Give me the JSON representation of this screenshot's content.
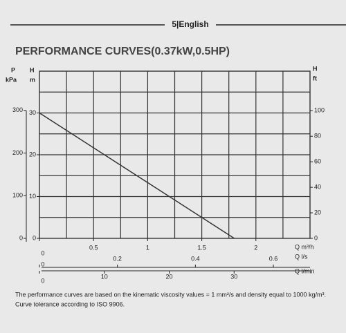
{
  "header": "5|English",
  "chart_data": {
    "type": "line",
    "title": "PERFORMANCE CURVES(0.37kW,0.5HP)",
    "x": [
      0,
      1.8
    ],
    "series": [
      {
        "color": "#333333",
        "values": [
          30,
          0
        ]
      }
    ],
    "xlim": [
      0,
      2.5
    ],
    "xticks": [
      0,
      0.5,
      1,
      1.5,
      2
    ],
    "xlabel": "Q m³/h",
    "ylim": [
      0,
      40
    ],
    "yticks": [
      0,
      10,
      20,
      30
    ],
    "ylabel": [
      "H",
      "m"
    ],
    "grid": true,
    "pressure_axis": {
      "label": [
        "P",
        "kPa"
      ],
      "lim": [
        0,
        392
      ],
      "ticks": [
        0,
        100,
        200,
        300
      ]
    },
    "feet_axis": {
      "label": [
        "H",
        "ft"
      ],
      "lim": [
        0,
        131
      ],
      "ticks": [
        0,
        20,
        40,
        60,
        80,
        100
      ]
    },
    "ls_axis": {
      "label": "Q l/s",
      "lim": [
        0,
        0.694
      ],
      "ticks": [
        0,
        0.2,
        0.4,
        0.6
      ]
    },
    "lmin_axis": {
      "label": "Q l/min",
      "lim": [
        0,
        41.7
      ],
      "ticks": [
        0,
        10,
        20,
        30
      ]
    }
  },
  "notes": [
    "The performance curves are based on the kinematic viscosity values = 1 mm²/s and density equal to 1000 kg/m³.",
    "Curve tolerance according to ISO 9906."
  ]
}
